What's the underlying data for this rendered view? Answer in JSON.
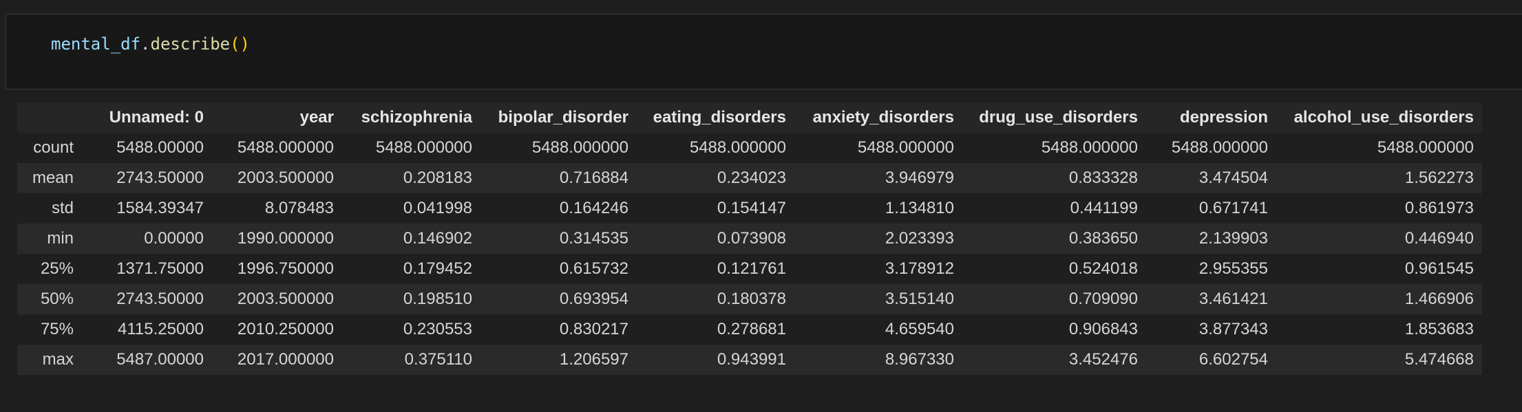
{
  "code_cell": {
    "var": "mental_df",
    "dot": ".",
    "method": "describe",
    "parens": "()"
  },
  "output": {
    "columns": [
      "",
      "Unnamed: 0",
      "year",
      "schizophrenia",
      "bipolar_disorder",
      "eating_disorders",
      "anxiety_disorders",
      "drug_use_disorders",
      "depression",
      "alcohol_use_disorders"
    ],
    "rows": [
      {
        "label": "count",
        "values": [
          "5488.00000",
          "5488.000000",
          "5488.000000",
          "5488.000000",
          "5488.000000",
          "5488.000000",
          "5488.000000",
          "5488.000000",
          "5488.000000"
        ]
      },
      {
        "label": "mean",
        "values": [
          "2743.50000",
          "2003.500000",
          "0.208183",
          "0.716884",
          "0.234023",
          "3.946979",
          "0.833328",
          "3.474504",
          "1.562273"
        ]
      },
      {
        "label": "std",
        "values": [
          "1584.39347",
          "8.078483",
          "0.041998",
          "0.164246",
          "0.154147",
          "1.134810",
          "0.441199",
          "0.671741",
          "0.861973"
        ]
      },
      {
        "label": "min",
        "values": [
          "0.00000",
          "1990.000000",
          "0.146902",
          "0.314535",
          "0.073908",
          "2.023393",
          "0.383650",
          "2.139903",
          "0.446940"
        ]
      },
      {
        "label": "25%",
        "values": [
          "1371.75000",
          "1996.750000",
          "0.179452",
          "0.615732",
          "0.121761",
          "3.178912",
          "0.524018",
          "2.955355",
          "0.961545"
        ]
      },
      {
        "label": "50%",
        "values": [
          "2743.50000",
          "2003.500000",
          "0.198510",
          "0.693954",
          "0.180378",
          "3.515140",
          "0.709090",
          "3.461421",
          "1.466906"
        ]
      },
      {
        "label": "75%",
        "values": [
          "4115.25000",
          "2010.250000",
          "0.230553",
          "0.830217",
          "0.278681",
          "4.659540",
          "0.906843",
          "3.877343",
          "1.853683"
        ]
      },
      {
        "label": "max",
        "values": [
          "5487.00000",
          "2017.000000",
          "0.375110",
          "1.206597",
          "0.943991",
          "8.967330",
          "3.452476",
          "6.602754",
          "5.474668"
        ]
      }
    ]
  }
}
